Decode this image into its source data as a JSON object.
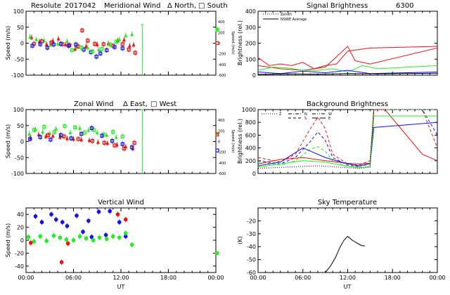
{
  "colors": {
    "red": "#ee1111",
    "green": "#22ee22",
    "blue": "#1111ee",
    "black": "#000000"
  },
  "chart_data": [
    {
      "id": "meridional",
      "type": "scatter",
      "title_parts": [
        "Resolute",
        "2017042",
        "Meridional Wind",
        "Δ North,",
        "□ South"
      ],
      "ylabel": "Speed (m/s)",
      "ylabel_right": "Speed (m/s)",
      "ylim": [
        -100,
        100
      ],
      "yticks": [
        -100,
        -50,
        0,
        50,
        100
      ],
      "ylim_right": [
        -600,
        600
      ],
      "yticks_right": [
        -600,
        -400,
        -200,
        0,
        200,
        400
      ],
      "xlim": [
        0,
        24
      ],
      "xtick_labels": [],
      "series": [
        {
          "name": "North red",
          "color": "red",
          "marker": "triangle",
          "x": [
            0.7,
            1.7,
            2.6,
            3.4,
            4.1,
            5.0,
            6.2,
            7.6,
            9.0,
            10.4,
            11.6,
            12.4,
            13.1,
            13.6
          ],
          "y": [
            18,
            5,
            -3,
            8,
            14,
            -4,
            -18,
            -9,
            -4,
            -1,
            8,
            11,
            -8,
            -5
          ]
        },
        {
          "name": "North green",
          "color": "green",
          "marker": "triangle",
          "x": [
            0.5,
            1.3,
            2.3,
            3.1,
            4.0,
            5.2,
            6.4,
            7.8,
            9.2,
            10.6,
            11.8,
            12.6,
            13.4
          ],
          "y": [
            20,
            12,
            8,
            -5,
            -2,
            6,
            -12,
            -14,
            -20,
            -5,
            12,
            24,
            28
          ]
        },
        {
          "name": "South red",
          "color": "red",
          "marker": "square",
          "x": [
            1.0,
            2.0,
            3.2,
            4.6,
            5.5,
            6.6,
            7.1,
            7.8,
            8.7,
            9.8,
            11.0,
            12.2,
            13.0,
            13.8
          ],
          "y": [
            -2,
            6,
            2,
            -3,
            -6,
            -10,
            40,
            8,
            -2,
            -3,
            -8,
            -3,
            -20,
            -30
          ]
        },
        {
          "name": "South blue",
          "color": "blue",
          "marker": "square",
          "x": [
            0.8,
            1.8,
            2.7,
            3.5,
            4.4,
            5.4,
            6.3,
            7.3,
            8.2,
            8.9,
            9.4,
            10.2,
            11.2,
            12.2
          ],
          "y": [
            -8,
            -3,
            -14,
            -4,
            -2,
            -8,
            -4,
            -20,
            -28,
            -42,
            -32,
            -22,
            -12,
            -16
          ]
        },
        {
          "name": "South green",
          "color": "green",
          "marker": "square",
          "x": [
            5.8,
            7.0,
            8.4,
            9.6,
            10.6,
            11.4
          ],
          "y": [
            -22,
            -14,
            -26,
            -18,
            -4,
            5
          ]
        }
      ],
      "right_points": [
        {
          "x": 24,
          "y": 42,
          "color": "green",
          "marker": "square"
        },
        {
          "x": 24,
          "y": 45,
          "color": "green",
          "marker": "triangle"
        },
        {
          "x": 24,
          "y": 0,
          "color": "red",
          "marker": "square"
        }
      ],
      "vline": {
        "x": 14.7,
        "y1": -100,
        "y2": 58,
        "color": "green"
      }
    },
    {
      "id": "zonal",
      "type": "scatter",
      "title_parts": [
        "Zonal Wind",
        "Δ East,",
        "□ West"
      ],
      "ylabel": "Speed (m/s)",
      "ylabel_right": "Speed (m/s)",
      "ylim": [
        -100,
        100
      ],
      "yticks": [
        -100,
        -50,
        0,
        50,
        100
      ],
      "ylim_right": [
        -600,
        600
      ],
      "yticks_right": [
        -600,
        -400,
        -200,
        0,
        200,
        400
      ],
      "xlim": [
        0,
        24
      ],
      "xtick_labels": [],
      "series": [
        {
          "name": "East green",
          "color": "green",
          "marker": "triangle",
          "x": [
            0.4,
            1.2,
            2.1,
            3.0,
            3.8,
            4.6,
            5.6,
            6.8,
            7.9,
            9.0,
            10.2,
            11.4
          ],
          "y": [
            24,
            38,
            30,
            26,
            40,
            18,
            28,
            42,
            36,
            28,
            20,
            14
          ]
        },
        {
          "name": "East red",
          "color": "red",
          "marker": "triangle",
          "x": [
            0.6,
            1.6,
            2.5,
            3.4,
            4.3,
            5.2,
            6.0,
            7.0,
            8.0,
            9.1,
            10.3,
            11.5,
            12.6,
            13.5
          ],
          "y": [
            12,
            22,
            16,
            18,
            14,
            10,
            8,
            6,
            4,
            -2,
            -5,
            -10,
            -16,
            -22
          ]
        },
        {
          "name": "West green",
          "color": "green",
          "marker": "square",
          "x": [
            1.0,
            2.3,
            3.6,
            4.9,
            6.2,
            7.4,
            8.6,
            9.8,
            11.0,
            12.2
          ],
          "y": [
            36,
            46,
            30,
            48,
            44,
            28,
            36,
            22,
            30,
            16
          ]
        },
        {
          "name": "West blue",
          "color": "blue",
          "marker": "square",
          "x": [
            0.5,
            1.8,
            3.1,
            4.4,
            5.7,
            7.0,
            8.3,
            9.6,
            10.9,
            12.2,
            13.4
          ],
          "y": [
            8,
            14,
            6,
            20,
            10,
            24,
            42,
            18,
            2,
            -8,
            -18
          ]
        },
        {
          "name": "West red",
          "color": "red",
          "marker": "square",
          "x": [
            2.8,
            4.8,
            6.6,
            8.4,
            9.9,
            11.2,
            12.4,
            13.7
          ],
          "y": [
            20,
            16,
            8,
            2,
            -4,
            -12,
            -22,
            -4
          ]
        }
      ],
      "right_points": [
        {
          "x": 24,
          "y": 26,
          "color": "green",
          "marker": "triangle"
        },
        {
          "x": 24,
          "y": 22,
          "color": "red",
          "marker": "square"
        },
        {
          "x": 24,
          "y": -28,
          "color": "blue",
          "marker": "square"
        }
      ],
      "vline": {
        "x": 14.7,
        "y1": -100,
        "y2": 100,
        "color": "green"
      }
    },
    {
      "id": "vertical",
      "type": "scatter",
      "title_parts": [
        "Vertical Wind"
      ],
      "ylabel": "Speed (m/s)",
      "ylim": [
        -50,
        50
      ],
      "yticks": [
        -40,
        -20,
        0,
        20,
        40
      ],
      "xlim": [
        0,
        24
      ],
      "xtick_labels": [
        "00:00",
        "06:00",
        "12:00",
        "18:00",
        "00:00"
      ],
      "xlabel": "UT",
      "series": [
        {
          "name": "blue",
          "color": "blue",
          "marker": "circle",
          "x": [
            1.2,
            2.0,
            3.2,
            3.8,
            4.6,
            5.2,
            6.4,
            7.2,
            7.9,
            8.3,
            9.2,
            10.1,
            10.6,
            11.8,
            12.6
          ],
          "y": [
            37,
            28,
            40,
            32,
            28,
            22,
            38,
            13,
            30,
            5,
            44,
            8,
            45,
            28,
            6
          ]
        },
        {
          "name": "green",
          "color": "green",
          "marker": "circle",
          "x": [
            0.3,
            1.0,
            1.8,
            2.6,
            3.5,
            4.3,
            5.1,
            6.0,
            6.8,
            7.6,
            8.5,
            9.3,
            10.2,
            11.0,
            11.8,
            12.6,
            13.4
          ],
          "y": [
            5,
            -2,
            6,
            -1,
            7,
            4,
            1,
            0,
            6,
            3,
            0,
            4,
            2,
            6,
            4,
            11,
            -7
          ]
        },
        {
          "name": "red",
          "color": "red",
          "marker": "circle",
          "x": [
            0.6,
            4.5,
            5.3,
            11.6,
            12.6
          ],
          "y": [
            -4,
            -34,
            -5,
            40,
            32
          ]
        }
      ],
      "right_points": [
        {
          "x": 24,
          "y": -20,
          "color": "green",
          "marker": "circle"
        }
      ]
    },
    {
      "id": "signal",
      "type": "line",
      "title_parts": [
        "Signal Brightness",
        "6300"
      ],
      "ylabel": "Brightness (rel.)",
      "ylim": [
        0,
        400
      ],
      "yticks": [
        0,
        100,
        200,
        300,
        400
      ],
      "xlim": [
        0,
        24
      ],
      "xtick_labels": [],
      "legend": [
        {
          "label": "Zenith",
          "style": "dotted",
          "color": "black"
        },
        {
          "label": "NSWE Average",
          "style": "solid",
          "color": "black"
        }
      ],
      "series": [
        {
          "name": "red",
          "color": "red",
          "x": [
            0,
            1.5,
            3,
            4.5,
            6,
            7.5,
            9,
            10.5,
            12,
            13.5,
            15,
            24
          ],
          "y": [
            110,
            60,
            70,
            60,
            80,
            40,
            60,
            70,
            150,
            160,
            170,
            180
          ]
        },
        {
          "name": "red2",
          "color": "red",
          "x": [
            0,
            3,
            6,
            9,
            12,
            13,
            15,
            24
          ],
          "y": [
            60,
            40,
            30,
            50,
            180,
            90,
            70,
            170
          ]
        },
        {
          "name": "green",
          "color": "green",
          "x": [
            0,
            2,
            4,
            6,
            8,
            10,
            12,
            14,
            16,
            24
          ],
          "y": [
            30,
            50,
            45,
            30,
            30,
            40,
            20,
            60,
            40,
            60
          ]
        },
        {
          "name": "blue",
          "color": "blue",
          "x": [
            0,
            3,
            6,
            9,
            12,
            15,
            24
          ],
          "y": [
            20,
            10,
            25,
            15,
            30,
            10,
            20
          ]
        },
        {
          "name": "black",
          "color": "black",
          "x": [
            0,
            4,
            8,
            12,
            16,
            24
          ],
          "y": [
            5,
            8,
            6,
            10,
            8,
            12
          ]
        }
      ]
    },
    {
      "id": "background",
      "type": "line",
      "title_parts": [
        "Background Brightness"
      ],
      "ylabel": "Brightness (rel.)",
      "ylim": [
        0,
        1000
      ],
      "yticks": [
        0,
        200,
        400,
        600,
        800,
        1000
      ],
      "xlim": [
        0,
        24
      ],
      "xtick_labels": [],
      "legend": [
        {
          "label": "Z",
          "style": "dotted",
          "color": "black"
        },
        {
          "label": "N",
          "style": "dashdot",
          "color": "black"
        },
        {
          "label": "S",
          "style": "dashed",
          "color": "black"
        },
        {
          "label": "W",
          "style": "dashdotdot",
          "color": "black"
        },
        {
          "label": "E",
          "style": "longdash",
          "color": "black"
        }
      ],
      "series": [
        {
          "name": "red S",
          "color": "red",
          "dash": "4 3",
          "x": [
            0,
            3,
            5,
            7,
            8,
            9,
            10,
            12,
            13.5,
            15,
            15.5,
            16,
            22,
            24
          ],
          "y": [
            250,
            180,
            300,
            700,
            880,
            700,
            300,
            150,
            130,
            200,
            1000,
            1000,
            1000,
            400
          ]
        },
        {
          "name": "blue S",
          "color": "blue",
          "dash": "4 3",
          "x": [
            0,
            3,
            5,
            7,
            8,
            9,
            10,
            12,
            13.5,
            15,
            15.5,
            16,
            22,
            24
          ],
          "y": [
            200,
            150,
            250,
            500,
            650,
            520,
            250,
            130,
            110,
            180,
            1000,
            1000,
            1000,
            600
          ]
        },
        {
          "name": "green S",
          "color": "green",
          "dash": "4 3",
          "x": [
            0,
            3,
            5,
            7,
            8,
            9,
            10,
            12,
            13.5,
            15,
            15.5,
            24
          ],
          "y": [
            180,
            130,
            200,
            380,
            420,
            350,
            200,
            110,
            100,
            150,
            1000,
            1000
          ]
        },
        {
          "name": "red solid",
          "color": "red",
          "x": [
            0,
            3,
            6,
            9,
            12,
            13.5,
            15,
            15.5,
            17,
            22,
            24
          ],
          "y": [
            150,
            220,
            250,
            200,
            160,
            150,
            160,
            1000,
            1000,
            300,
            200
          ]
        },
        {
          "name": "blue solid",
          "color": "blue",
          "x": [
            0,
            3,
            6,
            9,
            12,
            13.5,
            15,
            15.5,
            24
          ],
          "y": [
            120,
            180,
            400,
            250,
            150,
            120,
            150,
            720,
            800
          ]
        },
        {
          "name": "green solid",
          "color": "green",
          "x": [
            0,
            3,
            6,
            9,
            12,
            13.5,
            15,
            15.5,
            24
          ],
          "y": [
            100,
            150,
            200,
            180,
            110,
            90,
            110,
            900,
            900
          ]
        },
        {
          "name": "black dotted",
          "color": "black",
          "dash": "1 2",
          "x": [
            0,
            4,
            8,
            12,
            13.5,
            15,
            15.5,
            24
          ],
          "y": [
            80,
            100,
            120,
            90,
            80,
            100,
            1000,
            1000
          ]
        }
      ]
    },
    {
      "id": "sky",
      "type": "line",
      "title_parts": [
        "Sky Temperature"
      ],
      "ylabel": "(K)",
      "ylim": [
        -60,
        -10
      ],
      "yticks": [
        -60,
        -50,
        -40,
        -30,
        -20
      ],
      "xlim": [
        0,
        24
      ],
      "xtick_labels": [
        "00:00",
        "06:00",
        "12:00",
        "18:00",
        "00:00"
      ],
      "xlabel": "UT",
      "series": [
        {
          "name": "sky",
          "color": "black",
          "x": [
            9.0,
            9.7,
            10.4,
            11.0,
            11.5,
            12.0,
            12.6,
            13.2,
            13.8,
            14.3
          ],
          "y": [
            -60,
            -55,
            -48,
            -40,
            -35,
            -32,
            -35,
            -37,
            -39,
            -39.5
          ]
        }
      ]
    }
  ]
}
